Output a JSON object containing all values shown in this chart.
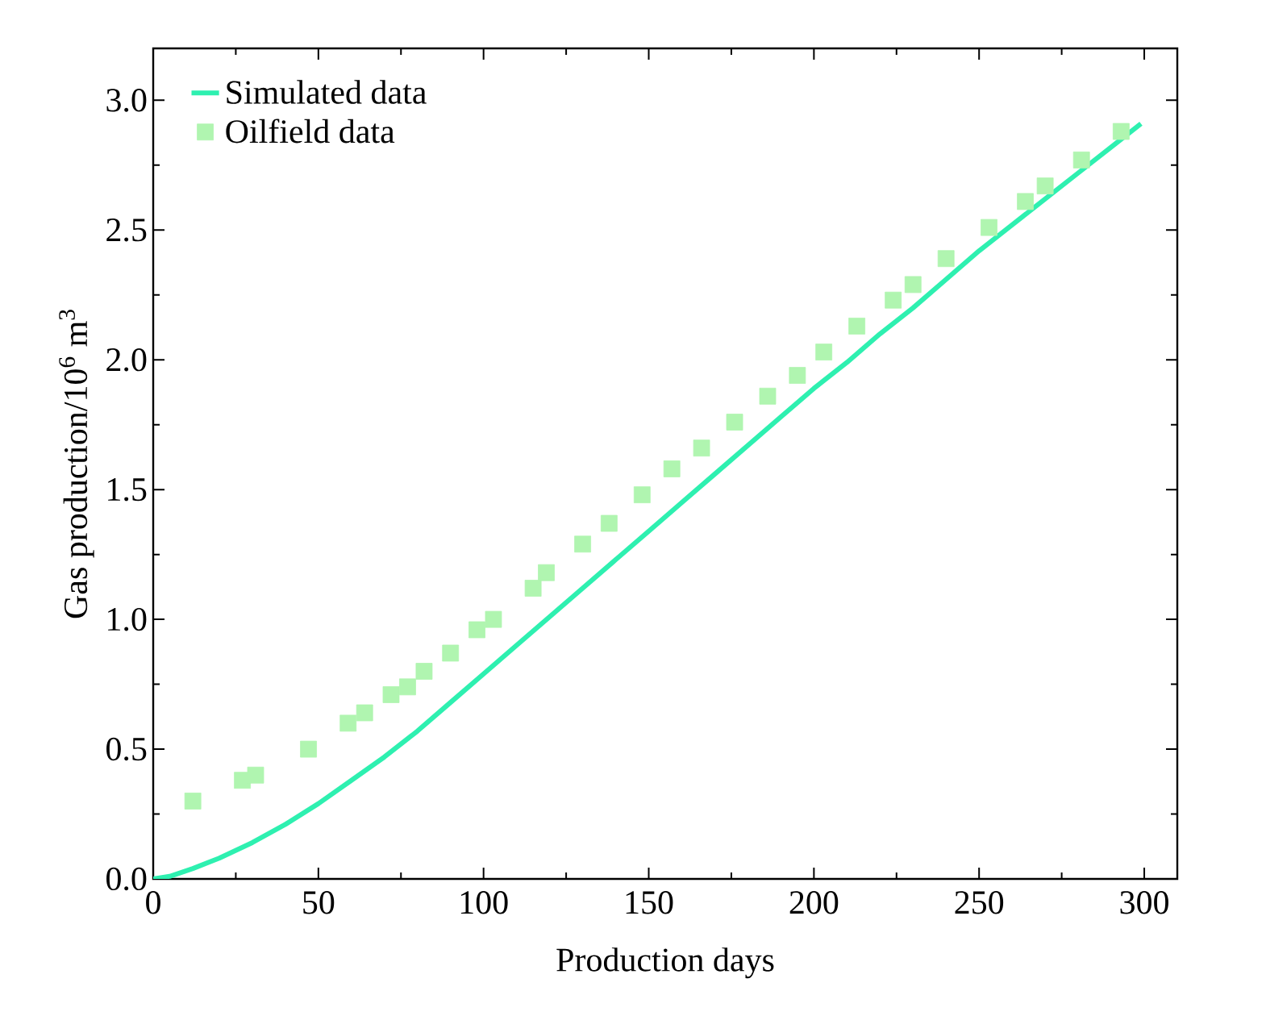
{
  "chart_data": {
    "type": "line",
    "xlabel": "Production days",
    "ylabel": "Gas production/10$^{6}$ m$^{3}$",
    "xlim": [
      0,
      310
    ],
    "ylim": [
      0,
      3.2
    ],
    "xticks": [
      0,
      50,
      100,
      150,
      200,
      250,
      300
    ],
    "yticks": [
      {
        "value": 0,
        "label": "0.0"
      },
      0.5,
      {
        "value": 1,
        "label": "1.0"
      },
      1.5,
      {
        "value": 2,
        "label": "2.0"
      },
      2.5,
      {
        "value": 3,
        "label": "3.0"
      }
    ],
    "legend": "top left",
    "grid": false,
    "series": [
      {
        "name": "Simulated data",
        "color": "#2ef0b0",
        "marker": "none",
        "line_style": "solid",
        "x": [
          0,
          5,
          12,
          20,
          30,
          40,
          50,
          60,
          70,
          80,
          90,
          100,
          110,
          120,
          130,
          140,
          150,
          160,
          170,
          180,
          190,
          200,
          210,
          220,
          230,
          240,
          250,
          260,
          270,
          280,
          290,
          299
        ],
        "values": [
          0,
          0.01,
          0.04,
          0.08,
          0.14,
          0.21,
          0.29,
          0.38,
          0.47,
          0.57,
          0.68,
          0.79,
          0.9,
          1.01,
          1.12,
          1.23,
          1.34,
          1.45,
          1.56,
          1.67,
          1.78,
          1.89,
          1.99,
          2.1,
          2.2,
          2.31,
          2.42,
          2.52,
          2.62,
          2.72,
          2.82,
          2.91
        ]
      },
      {
        "name": "Oilfield data",
        "type": "scatter",
        "color": "#b0f5b0",
        "marker": "square",
        "x": [
          12,
          27,
          31,
          47,
          59,
          64,
          72,
          77,
          82,
          90,
          98,
          103,
          115,
          119,
          130,
          138,
          148,
          157,
          166,
          176,
          186,
          195,
          203,
          213,
          224,
          230,
          240,
          253,
          264,
          270,
          281,
          293
        ],
        "values": [
          0.3,
          0.38,
          0.4,
          0.5,
          0.6,
          0.64,
          0.71,
          0.74,
          0.8,
          0.87,
          0.96,
          1.0,
          1.12,
          1.18,
          1.29,
          1.37,
          1.48,
          1.58,
          1.66,
          1.76,
          1.86,
          1.94,
          2.03,
          2.13,
          2.23,
          2.29,
          2.39,
          2.51,
          2.61,
          2.67,
          2.77,
          2.88
        ]
      }
    ]
  }
}
